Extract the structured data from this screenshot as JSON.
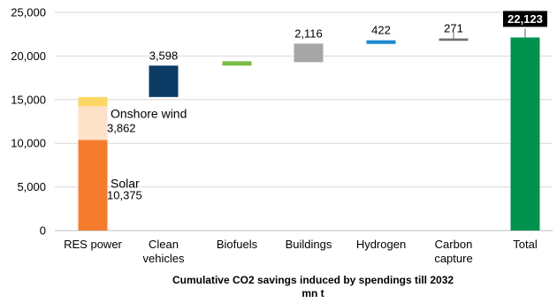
{
  "chart_data": {
    "type": "bar",
    "subtype": "waterfall",
    "caption_line1": "Cumulative CO2 savings induced by spendings till 2032",
    "caption_line2": "mn t",
    "ylim": [
      0,
      25000
    ],
    "yticks": [
      "0",
      "5,000",
      "10,000",
      "15,000",
      "20,000",
      "25,000"
    ],
    "categories": [
      [
        "RES power"
      ],
      [
        "Clean",
        "vehicles"
      ],
      [
        "Biofuels"
      ],
      [
        "Buildings"
      ],
      [
        "Hydrogen"
      ],
      [
        "Carbon",
        "capture"
      ],
      [
        "Total"
      ]
    ],
    "segments": [
      {
        "category": 0,
        "start": 0,
        "end": 10375,
        "color": "#f47c2c",
        "name": "Solar",
        "label": "10,375"
      },
      {
        "category": 0,
        "start": 10375,
        "end": 14237,
        "color": "#fde1c9",
        "name": "Onshore wind",
        "label": "3,862"
      },
      {
        "category": 0,
        "start": 14237,
        "end": 15300,
        "color": "#fdd766",
        "name": "",
        "label": ""
      },
      {
        "category": 1,
        "start": 15300,
        "end": 18898,
        "color": "#0b3c66",
        "name": "",
        "label": "3,598"
      },
      {
        "category": 2,
        "start": 18898,
        "end": 19400,
        "color": "#77bb45",
        "name": "",
        "label": ""
      },
      {
        "category": 3,
        "start": 19300,
        "end": 21416,
        "color": "#a6a6a6",
        "name": "",
        "label": "2,116"
      },
      {
        "category": 4,
        "start": 21380,
        "end": 21802,
        "color": "#1f8ad0",
        "name": "",
        "label": "422"
      },
      {
        "category": 5,
        "start": 21740,
        "end": 22011,
        "color": "#707070",
        "name": "",
        "label": "271"
      },
      {
        "category": 6,
        "start": 0,
        "end": 22123,
        "color": "#00924e",
        "name": "",
        "label": "22,123"
      }
    ]
  }
}
